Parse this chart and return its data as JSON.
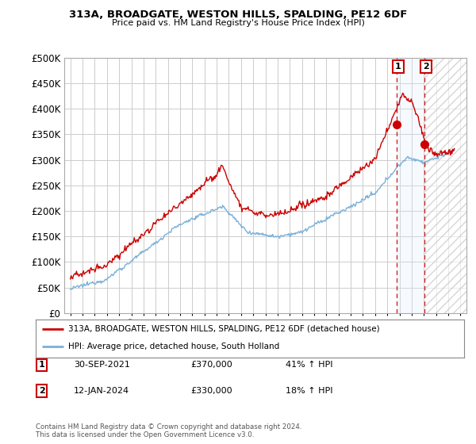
{
  "title": "313A, BROADGATE, WESTON HILLS, SPALDING, PE12 6DF",
  "subtitle": "Price paid vs. HM Land Registry's House Price Index (HPI)",
  "legend_line1": "313A, BROADGATE, WESTON HILLS, SPALDING, PE12 6DF (detached house)",
  "legend_line2": "HPI: Average price, detached house, South Holland",
  "point1_label": "1",
  "point1_date": "30-SEP-2021",
  "point1_price": "£370,000",
  "point1_hpi": "41% ↑ HPI",
  "point2_label": "2",
  "point2_date": "12-JAN-2024",
  "point2_price": "£330,000",
  "point2_hpi": "18% ↑ HPI",
  "footer": "Contains HM Land Registry data © Crown copyright and database right 2024.\nThis data is licensed under the Open Government Licence v3.0.",
  "hpi_color": "#7ab0d8",
  "price_color": "#cc0000",
  "vline_color": "#cc0000",
  "background_color": "#ffffff",
  "grid_color": "#cccccc",
  "shade_color": "#ddeeff",
  "hatch_color": "#cccccc",
  "ylim": [
    0,
    500000
  ],
  "yticks": [
    0,
    50000,
    100000,
    150000,
    200000,
    250000,
    300000,
    350000,
    400000,
    450000,
    500000
  ],
  "xlim_start": 1994.5,
  "xlim_end": 2027.5,
  "point1_x": 2021.75,
  "point1_y": 370000,
  "point2_x": 2024.04,
  "point2_y": 330000
}
